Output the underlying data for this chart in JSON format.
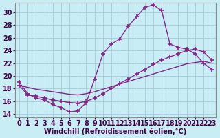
{
  "xlabel": "Windchill (Refroidissement éolien,°C)",
  "background_color": "#c8edf5",
  "grid_color": "#a8d0dc",
  "line_color": "#882288",
  "xlim": [
    -0.5,
    23.5
  ],
  "ylim": [
    13.5,
    31.5
  ],
  "yticks": [
    14,
    16,
    18,
    20,
    22,
    24,
    26,
    28,
    30
  ],
  "xticks": [
    0,
    1,
    2,
    3,
    4,
    5,
    6,
    7,
    8,
    9,
    10,
    11,
    12,
    13,
    14,
    15,
    16,
    17,
    18,
    19,
    20,
    21,
    22,
    23
  ],
  "series1_x": [
    0,
    1,
    2,
    3,
    4,
    5,
    6,
    7,
    8,
    9,
    10,
    11,
    12,
    13,
    14,
    15,
    16,
    17,
    18,
    19,
    20,
    21,
    22,
    23
  ],
  "series1_y": [
    19.0,
    17.2,
    16.5,
    16.2,
    15.5,
    15.0,
    14.3,
    14.5,
    15.8,
    19.5,
    23.5,
    25.0,
    25.8,
    27.8,
    29.3,
    30.8,
    31.2,
    30.3,
    25.0,
    24.5,
    24.2,
    23.5,
    22.0,
    21.0
  ],
  "series2_x": [
    0,
    1,
    2,
    3,
    4,
    5,
    6,
    7,
    8,
    9,
    10,
    11,
    12,
    13,
    14,
    15,
    16,
    17,
    18,
    19,
    20,
    21,
    22,
    23
  ],
  "series2_y": [
    18.5,
    17.0,
    16.8,
    16.5,
    16.2,
    16.0,
    15.8,
    15.7,
    16.0,
    16.5,
    17.2,
    18.0,
    18.8,
    19.5,
    20.3,
    21.0,
    21.8,
    22.5,
    23.0,
    23.5,
    24.0,
    24.2,
    23.8,
    22.5
  ],
  "series3_x": [
    0,
    1,
    2,
    3,
    4,
    5,
    6,
    7,
    8,
    9,
    10,
    11,
    12,
    13,
    14,
    15,
    16,
    17,
    18,
    19,
    20,
    21,
    22,
    23
  ],
  "series3_y": [
    18.5,
    18.2,
    17.9,
    17.7,
    17.5,
    17.3,
    17.1,
    17.0,
    17.2,
    17.5,
    17.9,
    18.3,
    18.7,
    19.1,
    19.5,
    19.9,
    20.3,
    20.7,
    21.1,
    21.5,
    21.9,
    22.1,
    22.3,
    22.0
  ],
  "xlabel_fontsize": 7,
  "tick_fontsize": 7,
  "line_width": 1.0,
  "marker_size": 4
}
